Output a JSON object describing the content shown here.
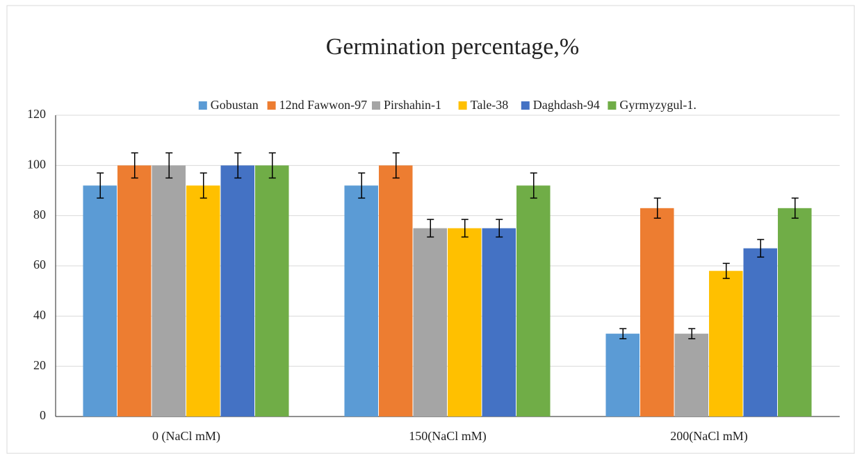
{
  "chart_data": {
    "type": "bar",
    "title": "Germination percentage,%",
    "categories": [
      "0 (NaCl mM)",
      "150(NaCl mM)",
      "200(NaCl mM)"
    ],
    "series": [
      {
        "name": "Gobustan",
        "color": "#5b9bd5",
        "values": [
          92,
          92,
          33
        ],
        "errors": [
          5,
          5,
          2
        ]
      },
      {
        "name": "12nd Fawwon-97",
        "color": "#ed7d31",
        "values": [
          100,
          100,
          83
        ],
        "errors": [
          5,
          5,
          4
        ]
      },
      {
        "name": "Pirshahin-1",
        "color": "#a5a5a5",
        "values": [
          100,
          75,
          33
        ],
        "errors": [
          5,
          3.5,
          2
        ]
      },
      {
        "name": "Tale-38",
        "color": "#ffc000",
        "values": [
          92,
          75,
          58
        ],
        "errors": [
          5,
          3.5,
          3
        ]
      },
      {
        "name": "Daghdash-94",
        "color": "#4472c4",
        "values": [
          100,
          75,
          67
        ],
        "errors": [
          5,
          3.5,
          3.5
        ]
      },
      {
        "name": "Gyrmyzygul-1.",
        "color": "#70ad47",
        "values": [
          100,
          92,
          83
        ],
        "errors": [
          5,
          5,
          4
        ]
      }
    ],
    "ylim": [
      0,
      120
    ],
    "yticks": [
      0,
      20,
      40,
      60,
      80,
      100,
      120
    ],
    "grid": true,
    "legend": "top"
  }
}
